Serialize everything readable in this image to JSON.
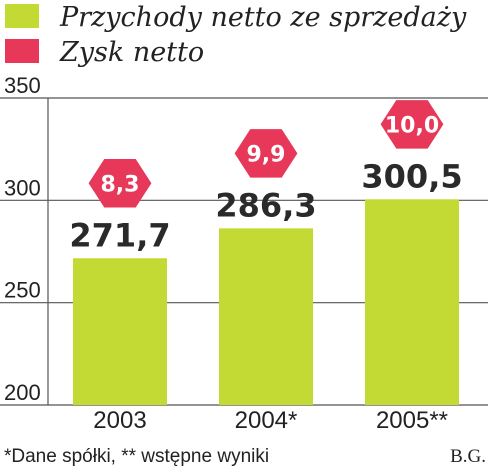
{
  "chart_data": {
    "type": "bar",
    "categories": [
      "2003",
      "2004*",
      "2005**"
    ],
    "series": [
      {
        "name": "Przychody netto ze sprzedaży",
        "values": [
          271.7,
          286.3,
          300.5
        ],
        "labels": [
          "271,7",
          "286,3",
          "300,5"
        ],
        "color": "#c3d934"
      },
      {
        "name": "Zysk netto",
        "values": [
          8.3,
          9.9,
          10.0
        ],
        "labels": [
          "8,3",
          "9,9",
          "10,0"
        ],
        "color": "#e8385a"
      }
    ],
    "ylim": [
      200,
      350
    ],
    "yticks": [
      "350",
      "300",
      "250",
      "200"
    ],
    "ytick_values": [
      350,
      300,
      250,
      200
    ],
    "grid": true,
    "legend_position": "top-left"
  },
  "footnote": "*Dane spółki, ** wstępne wyniki",
  "credit": "B.G."
}
